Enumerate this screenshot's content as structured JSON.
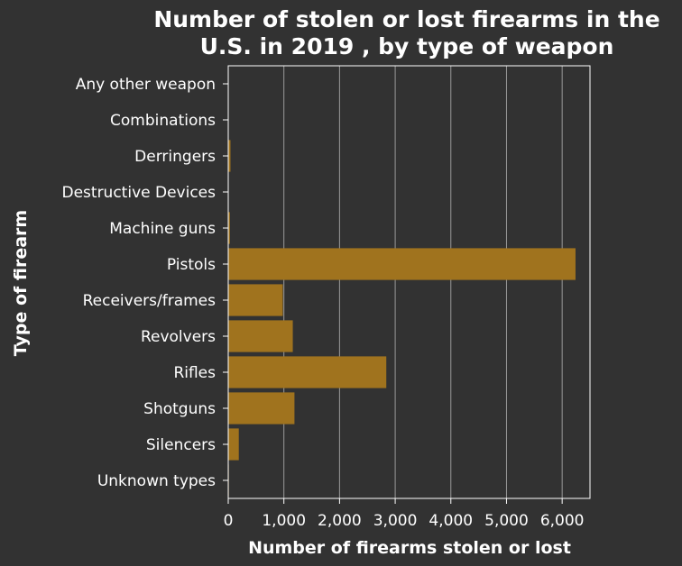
{
  "chart_data": {
    "type": "bar",
    "orientation": "horizontal",
    "title": "Number of stolen or lost firearms in the U.S. in 2019 , by type of weapon",
    "title_lines": [
      "Number of stolen or lost firearms in the",
      "U.S. in 2019 , by type of weapon"
    ],
    "xlabel": "Number of firearms stolen or lost",
    "ylabel": "Type of firearm",
    "xlim": [
      0,
      6500
    ],
    "xticks": [
      0,
      1000,
      2000,
      3000,
      4000,
      5000,
      6000
    ],
    "xtick_labels": [
      "0",
      "1,000",
      "2,000",
      "3,000",
      "4,000",
      "5,000",
      "6,000"
    ],
    "categories": [
      "Any other weapon",
      "Combinations",
      "Derringers",
      "Destructive Devices",
      "Machine guns",
      "Pistols",
      "Receivers/frames",
      "Revolvers",
      "Rifles",
      "Shotguns",
      "Silencers",
      "Unknown types"
    ],
    "values": [
      2,
      5,
      40,
      1,
      30,
      6240,
      980,
      1160,
      2840,
      1190,
      190,
      10
    ],
    "bar_color": "#a0731e",
    "grid": true,
    "legend": "none"
  }
}
